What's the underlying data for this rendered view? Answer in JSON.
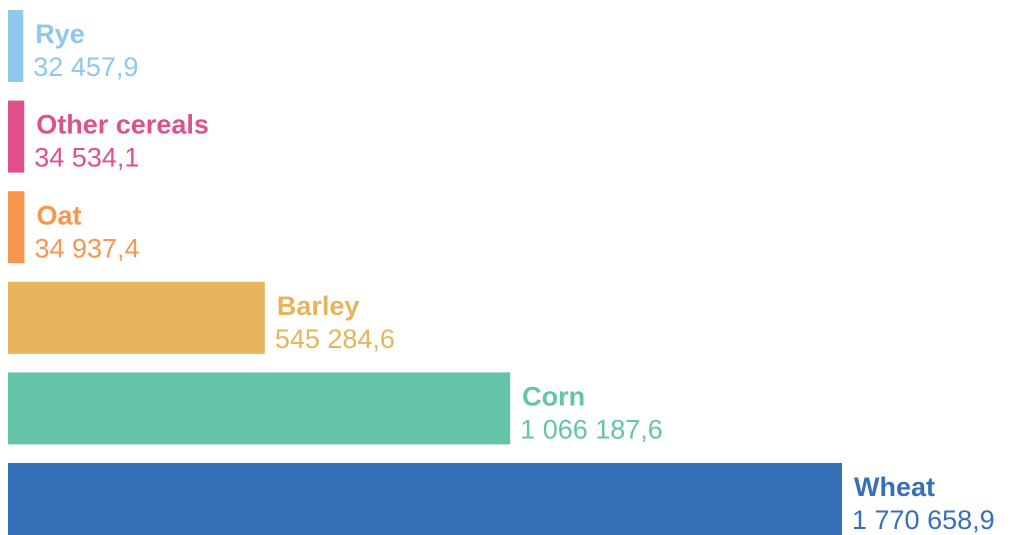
{
  "chart_data": {
    "type": "bar",
    "orientation": "horizontal",
    "categories": [
      "Rye",
      "Other cereals",
      "Oat",
      "Barley",
      "Corn",
      "Wheat"
    ],
    "values": [
      32457.9,
      34534.1,
      34937.4,
      545284.6,
      1066187.6,
      1770658.9
    ],
    "value_labels": [
      "32 457,9",
      "34 534,1",
      "34 937,4",
      "545 284,6",
      "1 066 187,6",
      "1 770 658,9"
    ],
    "colors": [
      "#8fc8ea",
      "#e0508a",
      "#f7964e",
      "#e6b45c",
      "#63c4a7",
      "#3570b8"
    ]
  }
}
